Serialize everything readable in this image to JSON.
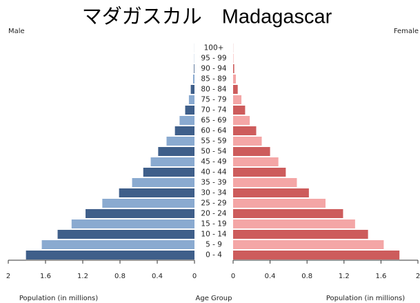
{
  "chart_data": {
    "type": "pyramid",
    "title": "マダガスカル　Madagascar",
    "categories": [
      "0 - 4",
      "5 - 9",
      "10 - 14",
      "15 - 19",
      "20 - 24",
      "25 - 29",
      "30 - 34",
      "35 - 39",
      "40 - 44",
      "45 - 49",
      "50 - 54",
      "55 - 59",
      "60 - 64",
      "65 - 69",
      "70 - 74",
      "75 - 79",
      "80 - 84",
      "85 - 89",
      "90 - 94",
      "95 - 99",
      "100+"
    ],
    "series": [
      {
        "name": "Male",
        "colors": [
          "#3f5f8a",
          "#8aaad0"
        ],
        "values": [
          1.81,
          1.64,
          1.47,
          1.32,
          1.17,
          0.99,
          0.81,
          0.67,
          0.55,
          0.47,
          0.39,
          0.3,
          0.21,
          0.16,
          0.1,
          0.06,
          0.04,
          0.015,
          0.006,
          0.002,
          0.0005
        ]
      },
      {
        "name": "Female",
        "colors": [
          "#cd5c5c",
          "#f4a6a6"
        ],
        "values": [
          1.8,
          1.63,
          1.46,
          1.32,
          1.19,
          1.0,
          0.82,
          0.69,
          0.57,
          0.49,
          0.4,
          0.31,
          0.25,
          0.18,
          0.13,
          0.09,
          0.05,
          0.03,
          0.012,
          0.004,
          0.001
        ]
      }
    ],
    "xlim": [
      0,
      2
    ],
    "xticks": [
      0,
      0.4,
      0.8,
      1.2,
      1.6,
      2
    ],
    "x_label": "Population (in millions)",
    "y_label": "Age Group"
  }
}
